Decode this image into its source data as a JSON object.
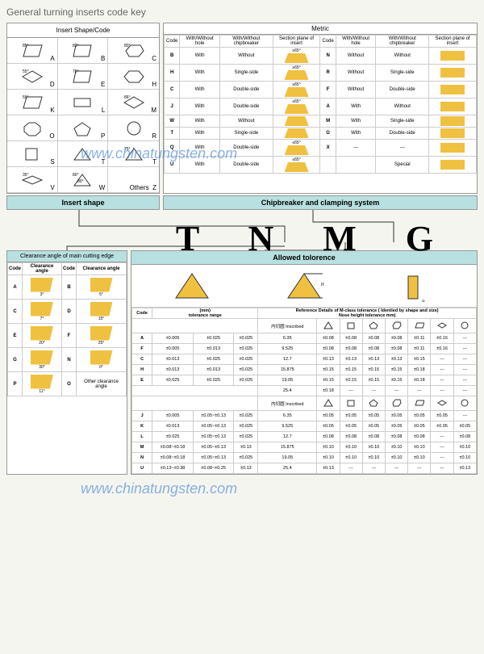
{
  "title": "General turning inserts code key",
  "insert_shape": {
    "header": "Insert  Shape/Code",
    "label": "Insert shape",
    "shapes": [
      {
        "angle": "85°",
        "code": "A"
      },
      {
        "angle": "82°",
        "code": "B"
      },
      {
        "angle": "80°",
        "code": "C"
      },
      {
        "angle": "55°",
        "code": "D"
      },
      {
        "angle": "75°",
        "code": "E"
      },
      {
        "angle": "",
        "code": "H"
      },
      {
        "angle": "55°",
        "code": "K"
      },
      {
        "angle": "",
        "code": "L"
      },
      {
        "angle": "86°",
        "code": "M"
      },
      {
        "angle": "",
        "code": "O"
      },
      {
        "angle": "",
        "code": "P"
      },
      {
        "angle": "",
        "code": "R"
      },
      {
        "angle": "",
        "code": "S"
      },
      {
        "angle": "",
        "code": "T"
      },
      {
        "angle": "75°",
        "code": "T"
      },
      {
        "angle": "35°",
        "code": "V"
      },
      {
        "angle": "80°",
        "code": "W"
      },
      {
        "angle": "Others",
        "code": "Z"
      }
    ]
  },
  "metric": {
    "header": "Metric",
    "label": "Chipbreaker  and  clamping  system",
    "cols": [
      "Code",
      "With/Without hole",
      "With/Without chipbreaker",
      "Section plane of insert"
    ],
    "left_rows": [
      {
        "code": "B",
        "hole": "With",
        "chip": "Without",
        "ang": "≥65°"
      },
      {
        "code": "H",
        "hole": "With",
        "chip": "Single-side",
        "ang": "≥65°"
      },
      {
        "code": "C",
        "hole": "With",
        "chip": "Double-side",
        "ang": "≥65°"
      },
      {
        "code": "J",
        "hole": "With",
        "chip": "Double-side",
        "ang": "≤65°"
      },
      {
        "code": "W",
        "hole": "With",
        "chip": "Without",
        "ang": ""
      },
      {
        "code": "T",
        "hole": "With",
        "chip": "Single-side",
        "ang": ""
      },
      {
        "code": "Q",
        "hole": "With",
        "chip": "Double-side",
        "ang": "≤65°"
      },
      {
        "code": "U",
        "hole": "With",
        "chip": "Double-side",
        "ang": "≤65°"
      }
    ],
    "right_rows": [
      {
        "code": "N",
        "hole": "Without",
        "chip": "Without"
      },
      {
        "code": "R",
        "hole": "Without",
        "chip": "Single-side"
      },
      {
        "code": "F",
        "hole": "Without",
        "chip": "Double-side"
      },
      {
        "code": "A",
        "hole": "With",
        "chip": "Without"
      },
      {
        "code": "M",
        "hole": "With",
        "chip": "Single-side"
      },
      {
        "code": "G",
        "hole": "With",
        "chip": "Double-side"
      },
      {
        "code": "X",
        "hole": "---",
        "chip": "---"
      },
      {
        "code": "",
        "hole": "",
        "chip": "Special"
      }
    ]
  },
  "code_letters": "T N M G",
  "clearance": {
    "header": "Clearance angle of main cutting edge",
    "cols": [
      "Code",
      "Clearance angle",
      "Code",
      "Clearance angle"
    ],
    "rows": [
      {
        "c1": "A",
        "a1": "3°",
        "c2": "B",
        "a2": "5°"
      },
      {
        "c1": "C",
        "a1": "7°",
        "c2": "D",
        "a2": "15°"
      },
      {
        "c1": "E",
        "a1": "20°",
        "c2": "F",
        "a2": "25°"
      },
      {
        "c1": "G",
        "a1": "30°",
        "c2": "N",
        "a2": "0°"
      },
      {
        "c1": "P",
        "a1": "11°",
        "c2": "O",
        "a2": "Other clearance angle"
      }
    ]
  },
  "tolerance": {
    "header": "Allowed tolorence",
    "shape_labels": [
      "⌀I.C",
      "⌀I.C",
      "S"
    ],
    "sub_header1": "(mm)",
    "sub_header2": "tolerance range",
    "ref_header": "Reference  Details of M-class tolerance  ( Identied by shape and size)",
    "ref_sub": "Nose height  tolerance mm)",
    "rows1": [
      {
        "code": "A",
        "v1": "±0.005",
        "v2": "±0.025",
        "v3": "±0.025"
      },
      {
        "code": "F",
        "v1": "±0.005",
        "v2": "±0.013",
        "v3": "±0.025"
      },
      {
        "code": "C",
        "v1": "±0.013",
        "v2": "±0.025",
        "v3": "±0.025"
      },
      {
        "code": "H",
        "v1": "±0.013",
        "v2": "±0.013",
        "v3": "±0.025"
      },
      {
        "code": "E",
        "v1": "±0.025",
        "v2": "±0.025",
        "v3": "±0.025"
      }
    ],
    "ref_rows1": [
      {
        "d": "内切圆 Inscribed",
        "v": [
          "",
          "",
          "",
          "",
          "",
          "",
          ""
        ]
      },
      {
        "d": "6.35",
        "v": [
          "±0.08",
          "±0.08",
          "±0.08",
          "±0.08",
          "±0.11",
          "±0.16",
          "---"
        ]
      },
      {
        "d": "9.525",
        "v": [
          "±0.08",
          "±0.08",
          "±0.08",
          "±0.08",
          "±0.11",
          "±0.16",
          "---"
        ]
      },
      {
        "d": "12.7",
        "v": [
          "±0.13",
          "±0.13",
          "±0.13",
          "±0.13",
          "±0.15",
          "---",
          "---"
        ]
      },
      {
        "d": "15.875",
        "v": [
          "±0.15",
          "±0.15",
          "±0.15",
          "±0.15",
          "±0.18",
          "---",
          "---"
        ]
      },
      {
        "d": "19.05",
        "v": [
          "±0.15",
          "±0.15",
          "±0.15",
          "±0.15",
          "±0.18",
          "---",
          "---"
        ]
      },
      {
        "d": "25.4",
        "v": [
          "±0.18",
          "---",
          "---",
          "---",
          "---",
          "---",
          "---"
        ]
      }
    ],
    "rows2": [
      {
        "code": "J",
        "v1": "±0.005",
        "v2": "±0.05~±0.13",
        "v3": "±0.025"
      },
      {
        "code": "K",
        "v1": "±0.013",
        "v2": "±0.05~±0.13",
        "v3": "±0.025"
      },
      {
        "code": "L",
        "v1": "±0.025",
        "v2": "±0.05~±0.13",
        "v3": "±0.025"
      },
      {
        "code": "M",
        "v1": "±0.08~±0.18",
        "v2": "±0.05~±0.13",
        "v3": "±0.13"
      },
      {
        "code": "N",
        "v1": "±0.08~±0.18",
        "v2": "±0.05~±0.13",
        "v3": "±0.025"
      },
      {
        "code": "U",
        "v1": "±0.13~±0.38",
        "v2": "±0.08~±0.25",
        "v3": "±0.13"
      }
    ],
    "ref_rows2": [
      {
        "d": "内切圆 Inscribed",
        "v": [
          "",
          "",
          "",
          "",
          "",
          "",
          ""
        ]
      },
      {
        "d": "6.35",
        "v": [
          "±0.05",
          "±0.05",
          "±0.05",
          "±0.05",
          "±0.05",
          "±0.05",
          "---"
        ]
      },
      {
        "d": "9.525",
        "v": [
          "±0.05",
          "±0.05",
          "±0.05",
          "±0.05",
          "±0.05",
          "±0.05",
          "±0.05"
        ]
      },
      {
        "d": "12.7",
        "v": [
          "±0.08",
          "±0.08",
          "±0.08",
          "±0.08",
          "±0.08",
          "---",
          "±0.08"
        ]
      },
      {
        "d": "15.875",
        "v": [
          "±0.10",
          "±0.10",
          "±0.10",
          "±0.10",
          "±0.10",
          "---",
          "±0.10"
        ]
      },
      {
        "d": "19.05",
        "v": [
          "±0.10",
          "±0.10",
          "±0.10",
          "±0.10",
          "±0.10",
          "---",
          "±0.10"
        ]
      },
      {
        "d": "25.4",
        "v": [
          "±0.13",
          "---",
          "---",
          "---",
          "---",
          "---",
          "±0.13"
        ]
      }
    ]
  },
  "watermark": "www.chinatungsten.com",
  "colors": {
    "insert_fill": "#f0c040",
    "label_bg": "#b8e0e0",
    "border": "#999",
    "watermark": "#4080d0"
  }
}
